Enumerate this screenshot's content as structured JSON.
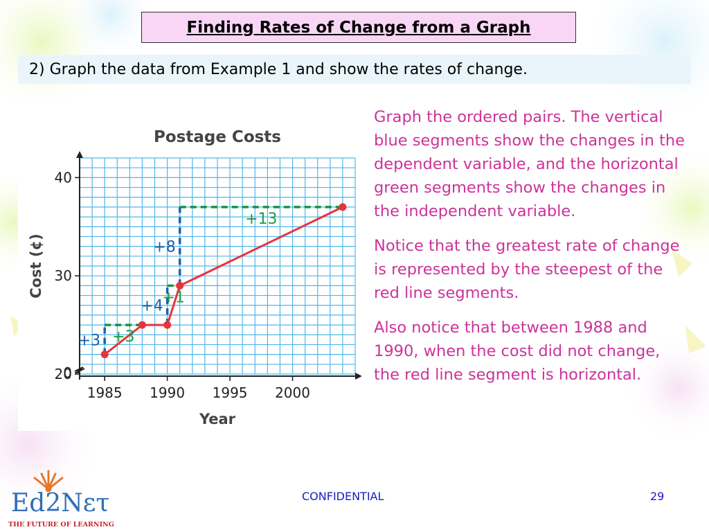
{
  "slide": {
    "title": "Finding Rates of Change from a Graph",
    "subtitle": "2) Graph the data from Example 1 and show the rates of change.",
    "description": [
      "Graph the ordered pairs. The vertical blue segments show the changes in the dependent variable, and the horizontal green segments show the changes in the independent variable.",
      "Notice that the greatest rate of change is represented by the steepest of the red line segments.",
      "Also notice that between 1988 and 1990, when the cost did not change, the red line segment is horizontal."
    ],
    "footer": {
      "label": "CONFIDENTIAL",
      "page_number": "29"
    },
    "logo": {
      "wordmark": "Ed2Nετ",
      "tagline": "THE FUTURE OF LEARNING"
    }
  },
  "colors": {
    "title_bg": "#f9d6f6",
    "subtitle_bg": "#eaf5fb",
    "description_text": "#cc3399",
    "footer_text": "#1c1cbf",
    "grid": "#4fb6e8",
    "line": "#e8333c",
    "vertical_change": "#1a62b0",
    "horizontal_change": "#16933f",
    "change_label_blue": "#1f5fa6",
    "change_label_green": "#1b9a48"
  },
  "chart_data": {
    "type": "line",
    "title": "Postage Costs",
    "xlabel": "Year",
    "ylabel": "Cost (¢)",
    "x_ticks": [
      1985,
      1990,
      1995,
      2000
    ],
    "y_ticks": [
      0,
      20,
      30,
      40
    ],
    "xlim": [
      1983,
      2005
    ],
    "ylim": [
      20,
      42
    ],
    "y_axis_break": true,
    "grid": true,
    "points": [
      {
        "x": 1985,
        "y": 22
      },
      {
        "x": 1988,
        "y": 25
      },
      {
        "x": 1990,
        "y": 25
      },
      {
        "x": 1991,
        "y": 29
      },
      {
        "x": 2004,
        "y": 37
      }
    ],
    "vertical_changes": [
      {
        "x": 1985,
        "y_from": 22,
        "y_to": 25,
        "label": "+3"
      },
      {
        "x": 1990,
        "y_from": 25,
        "y_to": 29,
        "label": "+4"
      },
      {
        "x": 1991,
        "y_from": 29,
        "y_to": 37,
        "label": "+8"
      }
    ],
    "horizontal_changes": [
      {
        "y": 25,
        "x_from": 1985,
        "x_to": 1988,
        "label": "+3"
      },
      {
        "y": 29,
        "x_from": 1990,
        "x_to": 1991,
        "label": "+1"
      },
      {
        "y": 37,
        "x_from": 1991,
        "x_to": 2004,
        "label": "+13"
      }
    ]
  }
}
